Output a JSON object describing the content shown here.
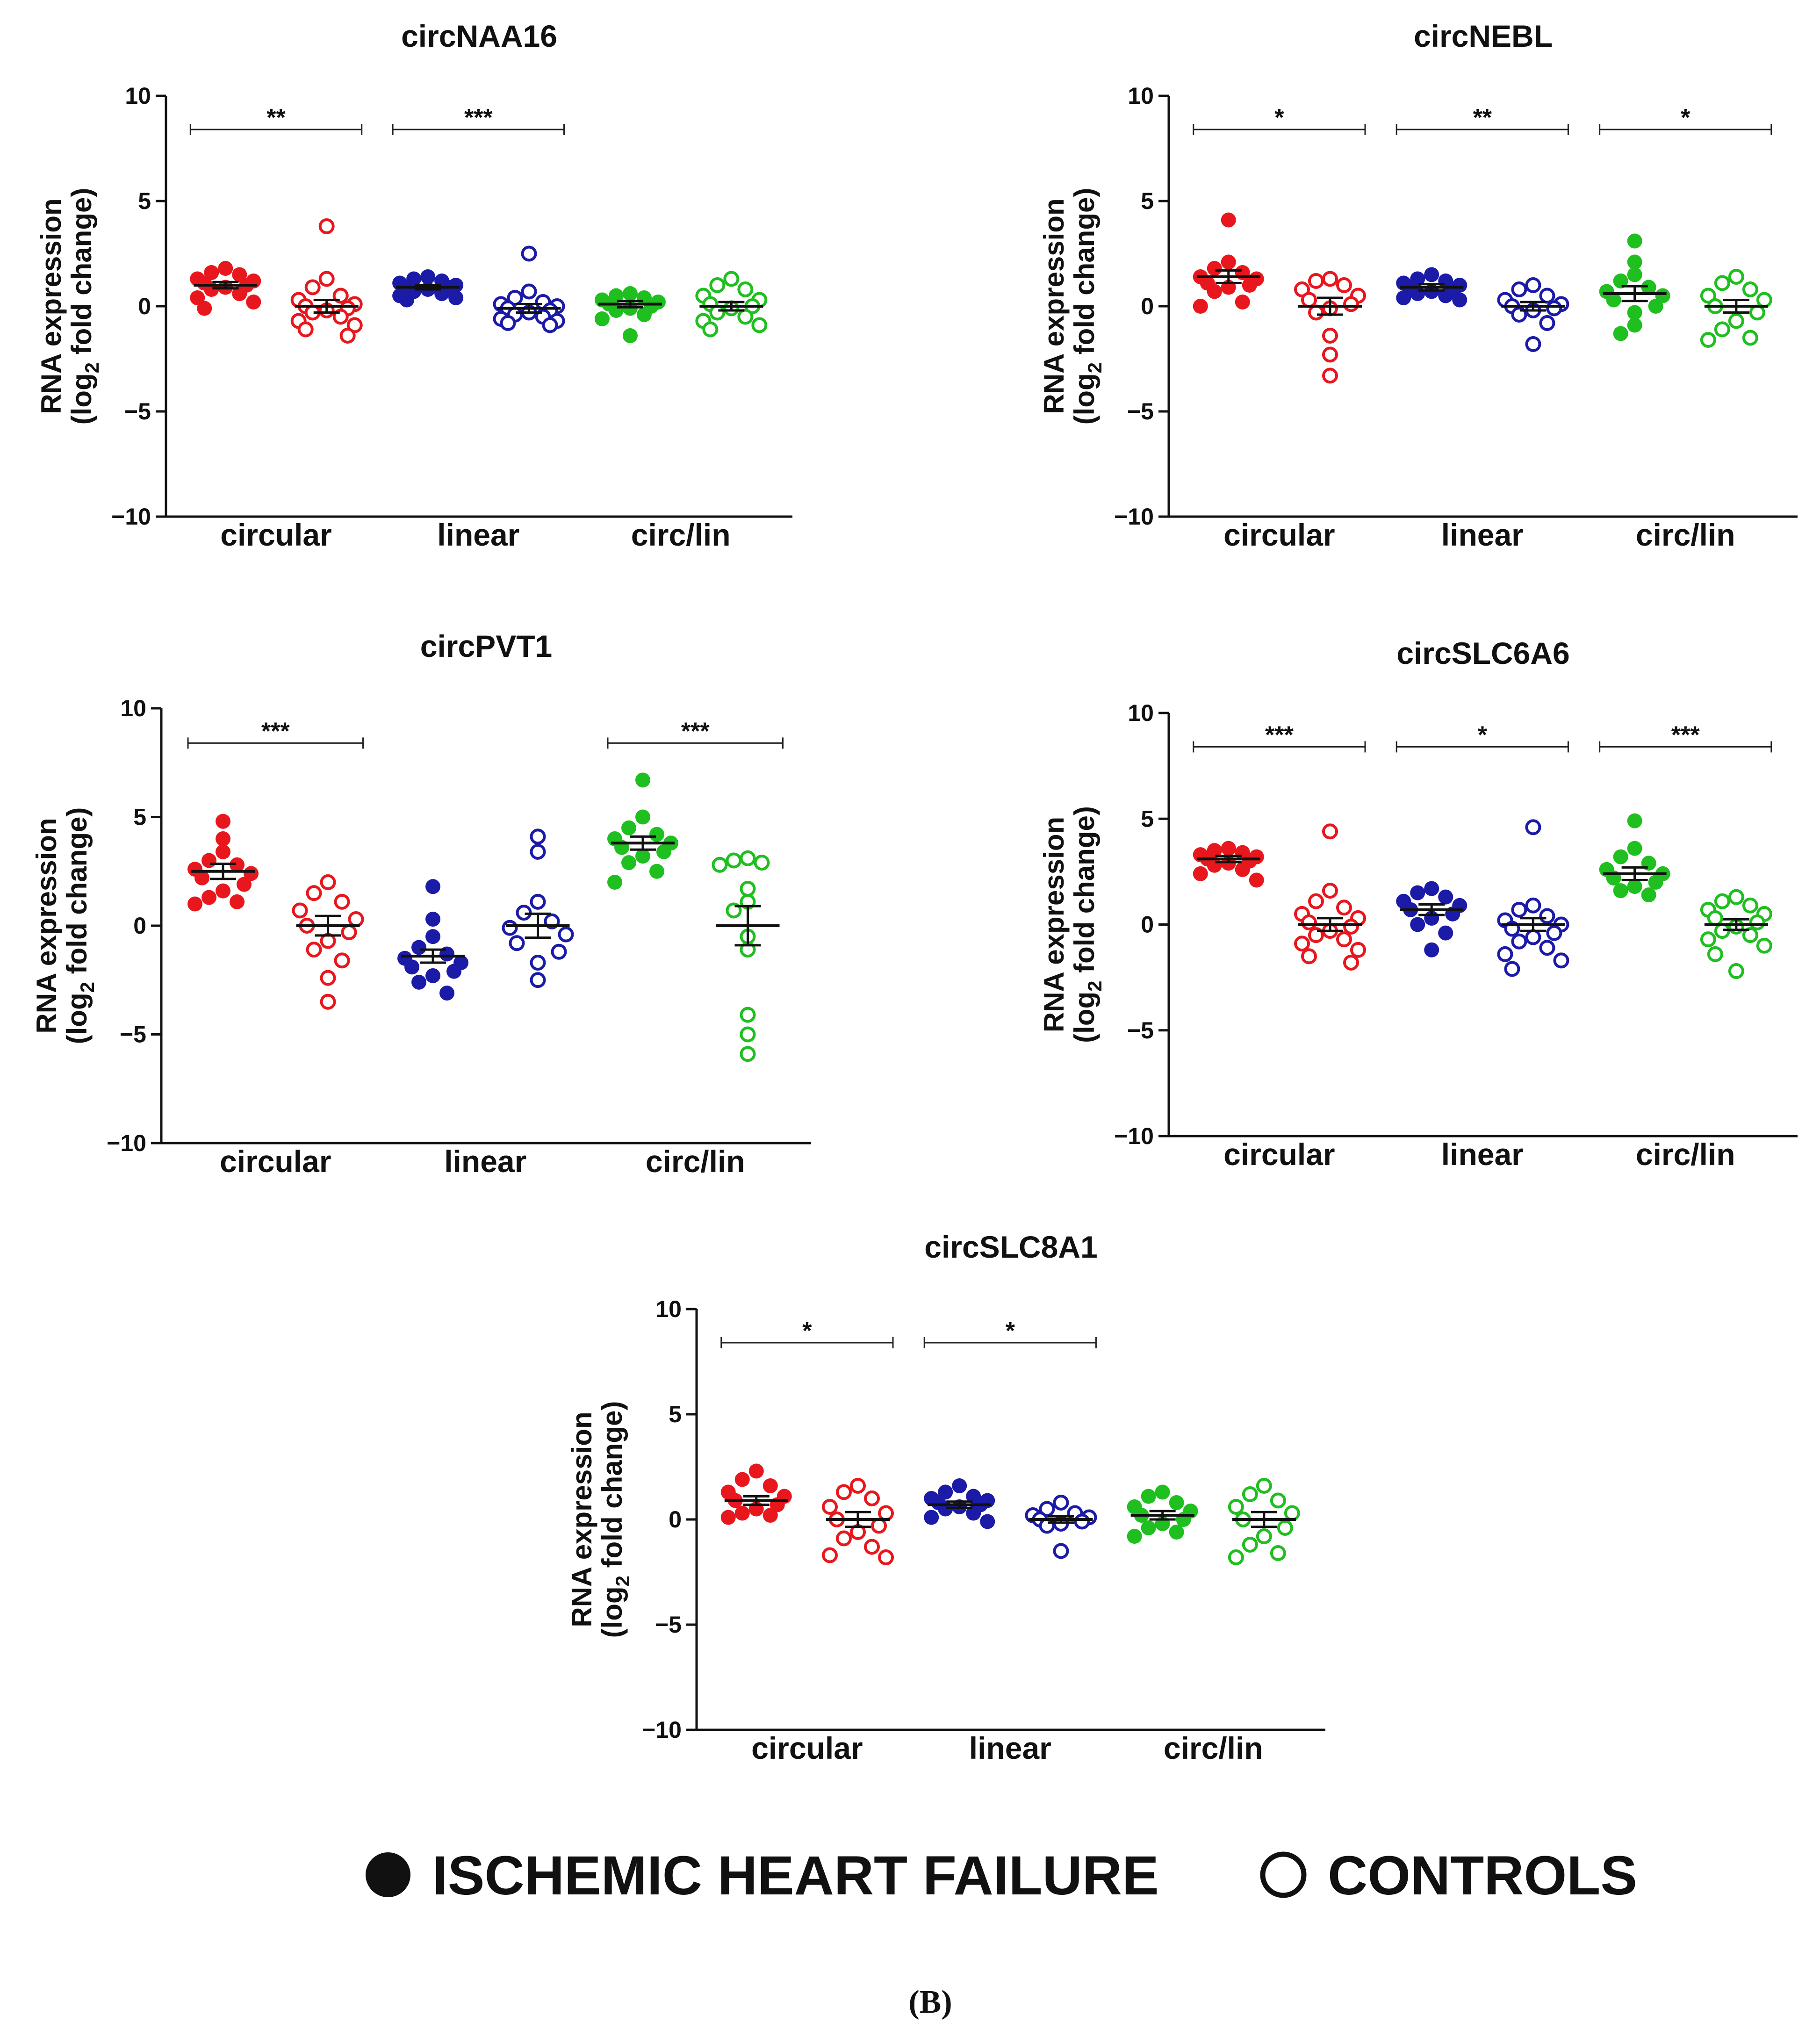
{
  "chart_data": [
    {
      "type": "scatter",
      "title": "circNAA16",
      "ylabel": "RNA expression",
      "ylabel_line2": [
        "(log",
        "2",
        " fold change)"
      ],
      "ylim": [
        -10,
        10
      ],
      "yticks": [
        "10",
        "5",
        "0",
        "−5",
        "−10"
      ],
      "ytick_values": [
        10,
        5,
        0,
        -5,
        -10
      ],
      "groups": [
        "circular",
        "linear",
        "circ/lin"
      ],
      "series": [
        {
          "name": "circular IHF",
          "color": "#e8171d",
          "filled": true,
          "mean": 1.0,
          "sem": 0.15,
          "values": [
            1.8,
            1.6,
            1.5,
            1.3,
            1.2,
            1.1,
            1.0,
            0.9,
            0.8,
            0.6,
            0.4,
            0.2,
            -0.1
          ]
        },
        {
          "name": "circular controls",
          "color": "#e8171d",
          "filled": false,
          "mean": 0.0,
          "sem": 0.3,
          "values": [
            3.8,
            1.3,
            0.9,
            0.5,
            0.3,
            0.1,
            0.0,
            -0.1,
            -0.2,
            -0.3,
            -0.5,
            -0.7,
            -0.9,
            -1.1,
            -1.4
          ]
        },
        {
          "name": "linear IHF",
          "color": "#1b1ba8",
          "filled": true,
          "mean": 0.9,
          "sem": 0.1,
          "values": [
            1.4,
            1.3,
            1.2,
            1.1,
            1.0,
            0.9,
            0.9,
            0.8,
            0.7,
            0.6,
            0.5,
            0.4,
            0.3
          ]
        },
        {
          "name": "linear controls",
          "color": "#1b1ba8",
          "filled": false,
          "mean": -0.1,
          "sem": 0.2,
          "values": [
            2.5,
            0.7,
            0.4,
            0.2,
            0.1,
            0.0,
            -0.1,
            -0.2,
            -0.3,
            -0.4,
            -0.5,
            -0.6,
            -0.7,
            -0.8,
            -0.9
          ]
        },
        {
          "name": "circ/lin IHF",
          "color": "#1fbf1f",
          "filled": true,
          "mean": 0.1,
          "sem": 0.15,
          "values": [
            0.6,
            0.5,
            0.4,
            0.3,
            0.2,
            0.1,
            0.0,
            -0.1,
            -0.2,
            -0.4,
            -0.6,
            -1.4
          ]
        },
        {
          "name": "circ/lin controls",
          "color": "#1fbf1f",
          "filled": false,
          "mean": 0.0,
          "sem": 0.2,
          "values": [
            1.3,
            1.0,
            0.8,
            0.5,
            0.3,
            0.1,
            0.0,
            -0.1,
            -0.3,
            -0.5,
            -0.7,
            -0.9,
            -1.1
          ]
        }
      ],
      "significance": [
        {
          "from": 0,
          "to": 1,
          "label": "**"
        },
        {
          "from": 2,
          "to": 3,
          "label": "***"
        }
      ]
    },
    {
      "type": "scatter",
      "title": "circNEBL",
      "ylabel": "RNA expression",
      "ylabel_line2": [
        "(log",
        "2",
        " fold change)"
      ],
      "ylim": [
        -10,
        10
      ],
      "yticks": [
        "10",
        "5",
        "0",
        "−5",
        "−10"
      ],
      "ytick_values": [
        10,
        5,
        0,
        -5,
        -10
      ],
      "groups": [
        "circular",
        "linear",
        "circ/lin"
      ],
      "series": [
        {
          "name": "circular IHF",
          "color": "#e8171d",
          "filled": true,
          "mean": 1.4,
          "sem": 0.3,
          "values": [
            4.1,
            2.1,
            1.8,
            1.6,
            1.4,
            1.3,
            1.1,
            1.0,
            0.9,
            0.7,
            0.2,
            0.0
          ]
        },
        {
          "name": "circular controls",
          "color": "#e8171d",
          "filled": false,
          "mean": 0.0,
          "sem": 0.4,
          "values": [
            1.3,
            1.2,
            1.0,
            0.8,
            0.5,
            0.3,
            0.1,
            -0.1,
            -0.3,
            -1.4,
            -2.3,
            -3.3
          ]
        },
        {
          "name": "linear IHF",
          "color": "#1b1ba8",
          "filled": true,
          "mean": 0.9,
          "sem": 0.15,
          "values": [
            1.5,
            1.3,
            1.2,
            1.1,
            1.0,
            0.9,
            0.8,
            0.7,
            0.6,
            0.5,
            0.4,
            0.3
          ]
        },
        {
          "name": "linear controls",
          "color": "#1b1ba8",
          "filled": false,
          "mean": 0.0,
          "sem": 0.2,
          "values": [
            1.0,
            0.8,
            0.5,
            0.3,
            0.1,
            0.0,
            -0.1,
            -0.2,
            -0.4,
            -0.8,
            -1.8
          ]
        },
        {
          "name": "circ/lin IHF",
          "color": "#1fbf1f",
          "filled": true,
          "mean": 0.6,
          "sem": 0.35,
          "values": [
            3.1,
            2.1,
            1.5,
            1.2,
            0.9,
            0.7,
            0.5,
            0.3,
            0.0,
            -0.3,
            -0.9,
            -1.3
          ]
        },
        {
          "name": "circ/lin controls",
          "color": "#1fbf1f",
          "filled": false,
          "mean": 0.0,
          "sem": 0.3,
          "values": [
            1.4,
            1.1,
            0.8,
            0.5,
            0.3,
            0.0,
            -0.3,
            -0.7,
            -1.1,
            -1.5,
            -1.6
          ]
        }
      ],
      "significance": [
        {
          "from": 0,
          "to": 1,
          "label": "*"
        },
        {
          "from": 2,
          "to": 3,
          "label": "**"
        },
        {
          "from": 4,
          "to": 5,
          "label": "*"
        }
      ]
    },
    {
      "type": "scatter",
      "title": "circPVT1",
      "ylabel": "RNA expression",
      "ylabel_line2": [
        "(log",
        "2",
        " fold change)"
      ],
      "ylim": [
        -10,
        10
      ],
      "yticks": [
        "10",
        "5",
        "0",
        "−5",
        "−10"
      ],
      "ytick_values": [
        10,
        5,
        0,
        -5,
        -10
      ],
      "groups": [
        "circular",
        "linear",
        "circ/lin"
      ],
      "series": [
        {
          "name": "circular IHF",
          "color": "#e8171d",
          "filled": true,
          "mean": 2.5,
          "sem": 0.35,
          "values": [
            4.8,
            4.0,
            3.4,
            3.0,
            2.8,
            2.6,
            2.4,
            2.2,
            1.9,
            1.6,
            1.3,
            1.1,
            1.0
          ]
        },
        {
          "name": "circular controls",
          "color": "#e8171d",
          "filled": false,
          "mean": 0.0,
          "sem": 0.45,
          "values": [
            2.0,
            1.5,
            1.1,
            0.7,
            0.3,
            0.0,
            -0.3,
            -0.7,
            -1.1,
            -1.6,
            -2.4,
            -3.5
          ]
        },
        {
          "name": "linear IHF",
          "color": "#1b1ba8",
          "filled": true,
          "mean": -1.4,
          "sem": 0.3,
          "values": [
            1.8,
            0.3,
            -0.5,
            -1.0,
            -1.3,
            -1.5,
            -1.7,
            -1.9,
            -2.1,
            -2.3,
            -2.6,
            -3.1
          ]
        },
        {
          "name": "linear controls",
          "color": "#1b1ba8",
          "filled": false,
          "mean": 0.0,
          "sem": 0.55,
          "values": [
            4.1,
            3.4,
            1.1,
            0.6,
            0.2,
            -0.1,
            -0.4,
            -0.8,
            -1.2,
            -1.7,
            -2.5
          ]
        },
        {
          "name": "circ/lin IHF",
          "color": "#1fbf1f",
          "filled": true,
          "mean": 3.8,
          "sem": 0.3,
          "values": [
            6.7,
            5.0,
            4.5,
            4.2,
            4.0,
            3.8,
            3.6,
            3.4,
            3.2,
            2.9,
            2.5,
            2.0
          ]
        },
        {
          "name": "circ/lin controls",
          "color": "#1fbf1f",
          "filled": false,
          "mean": 0.0,
          "sem": 0.9,
          "values": [
            3.1,
            3.0,
            2.9,
            2.8,
            1.7,
            1.1,
            0.7,
            -0.5,
            -1.1,
            -4.1,
            -5.0,
            -5.9
          ]
        }
      ],
      "significance": [
        {
          "from": 0,
          "to": 1,
          "label": "***"
        },
        {
          "from": 4,
          "to": 5,
          "label": "***"
        }
      ]
    },
    {
      "type": "scatter",
      "title": "circSLC6A6",
      "ylabel": "RNA expression",
      "ylabel_line2": [
        "(log",
        "2",
        " fold change)"
      ],
      "ylim": [
        -10,
        10
      ],
      "yticks": [
        "10",
        "5",
        "0",
        "−5",
        "−10"
      ],
      "ytick_values": [
        10,
        5,
        0,
        -5,
        -10
      ],
      "groups": [
        "circular",
        "linear",
        "circ/lin"
      ],
      "series": [
        {
          "name": "circular IHF",
          "color": "#e8171d",
          "filled": true,
          "mean": 3.1,
          "sem": 0.15,
          "values": [
            3.6,
            3.5,
            3.4,
            3.3,
            3.2,
            3.1,
            3.0,
            2.9,
            2.8,
            2.6,
            2.4,
            2.1
          ]
        },
        {
          "name": "circular controls",
          "color": "#e8171d",
          "filled": false,
          "mean": 0.0,
          "sem": 0.3,
          "values": [
            4.4,
            1.6,
            1.1,
            0.8,
            0.5,
            0.3,
            0.1,
            -0.1,
            -0.3,
            -0.5,
            -0.7,
            -0.9,
            -1.2,
            -1.5,
            -1.8
          ]
        },
        {
          "name": "linear IHF",
          "color": "#1b1ba8",
          "filled": true,
          "mean": 0.7,
          "sem": 0.25,
          "values": [
            1.7,
            1.5,
            1.3,
            1.1,
            0.9,
            0.7,
            0.5,
            0.3,
            0.0,
            -0.4,
            -1.2
          ]
        },
        {
          "name": "linear controls",
          "color": "#1b1ba8",
          "filled": false,
          "mean": 0.0,
          "sem": 0.3,
          "values": [
            4.6,
            0.9,
            0.7,
            0.4,
            0.2,
            0.0,
            -0.2,
            -0.4,
            -0.6,
            -0.8,
            -1.1,
            -1.4,
            -1.7,
            -2.1
          ]
        },
        {
          "name": "circ/lin IHF",
          "color": "#1fbf1f",
          "filled": true,
          "mean": 2.4,
          "sem": 0.3,
          "values": [
            4.9,
            3.6,
            3.2,
            2.9,
            2.6,
            2.4,
            2.2,
            2.0,
            1.8,
            1.6,
            1.4
          ]
        },
        {
          "name": "circ/lin controls",
          "color": "#1fbf1f",
          "filled": false,
          "mean": 0.0,
          "sem": 0.25,
          "values": [
            1.3,
            1.1,
            0.9,
            0.7,
            0.5,
            0.3,
            0.1,
            -0.1,
            -0.3,
            -0.5,
            -0.7,
            -1.0,
            -1.4,
            -2.2
          ]
        }
      ],
      "significance": [
        {
          "from": 0,
          "to": 1,
          "label": "***"
        },
        {
          "from": 2,
          "to": 3,
          "label": "*"
        },
        {
          "from": 4,
          "to": 5,
          "label": "***"
        }
      ]
    },
    {
      "type": "scatter",
      "title": "circSLC8A1",
      "ylabel": "RNA expression",
      "ylabel_line2": [
        "(log",
        "2",
        " fold change)"
      ],
      "ylim": [
        -10,
        10
      ],
      "yticks": [
        "10",
        "5",
        "0",
        "−5",
        "−10"
      ],
      "ytick_values": [
        10,
        5,
        0,
        -5,
        -10
      ],
      "groups": [
        "circular",
        "linear",
        "circ/lin"
      ],
      "series": [
        {
          "name": "circular IHF",
          "color": "#e8171d",
          "filled": true,
          "mean": 0.9,
          "sem": 0.2,
          "values": [
            2.3,
            1.9,
            1.6,
            1.3,
            1.1,
            0.9,
            0.7,
            0.5,
            0.3,
            0.2,
            0.1
          ]
        },
        {
          "name": "circular controls",
          "color": "#e8171d",
          "filled": false,
          "mean": 0.0,
          "sem": 0.35,
          "values": [
            1.6,
            1.3,
            1.0,
            0.6,
            0.3,
            0.0,
            -0.3,
            -0.6,
            -0.9,
            -1.3,
            -1.7,
            -1.8
          ]
        },
        {
          "name": "linear IHF",
          "color": "#1b1ba8",
          "filled": true,
          "mean": 0.7,
          "sem": 0.15,
          "values": [
            1.6,
            1.3,
            1.1,
            1.0,
            0.9,
            0.8,
            0.7,
            0.6,
            0.5,
            0.3,
            0.1,
            -0.1
          ]
        },
        {
          "name": "linear controls",
          "color": "#1b1ba8",
          "filled": false,
          "mean": 0.0,
          "sem": 0.15,
          "values": [
            0.8,
            0.5,
            0.3,
            0.2,
            0.1,
            0.0,
            -0.1,
            -0.2,
            -0.3,
            -1.5
          ]
        },
        {
          "name": "circ/lin IHF",
          "color": "#1fbf1f",
          "filled": true,
          "mean": 0.2,
          "sem": 0.2,
          "values": [
            1.3,
            1.1,
            0.8,
            0.6,
            0.4,
            0.2,
            0.0,
            -0.2,
            -0.4,
            -0.6,
            -0.8
          ]
        },
        {
          "name": "circ/lin controls",
          "color": "#1fbf1f",
          "filled": false,
          "mean": 0.0,
          "sem": 0.35,
          "values": [
            1.6,
            1.2,
            0.9,
            0.6,
            0.3,
            0.0,
            -0.4,
            -0.8,
            -1.2,
            -1.6,
            -1.8
          ]
        }
      ],
      "significance": [
        {
          "from": 0,
          "to": 1,
          "label": "*"
        },
        {
          "from": 2,
          "to": 3,
          "label": "*"
        }
      ]
    }
  ],
  "legend": {
    "filled_label": "ISCHEMIC HEART FAILURE",
    "open_label": "CONTROLS"
  },
  "panel_label": "(B)",
  "colors": {
    "red": "#e8171d",
    "blue": "#1b1ba8",
    "green": "#1fbf1f",
    "ink": "#111111"
  }
}
